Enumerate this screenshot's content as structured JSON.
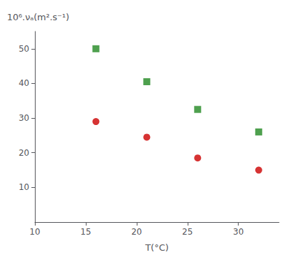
{
  "chart_data": {
    "type": "scatter",
    "xlabel": "T(°C)",
    "ylabel": "10⁶.νₐ(m².s⁻¹)",
    "x": [
      16,
      21,
      26,
      32
    ],
    "series": [
      {
        "color": "#cc0000",
        "marker": "circle",
        "values": [
          29,
          24.5,
          18.5,
          15
        ]
      },
      {
        "color": "#228822",
        "marker": "square",
        "values": [
          50,
          40.5,
          32.5,
          26
        ]
      }
    ],
    "xlim": [
      10,
      34
    ],
    "xticks": [
      10,
      15,
      20,
      25,
      30
    ],
    "ylim": [
      0,
      55
    ],
    "yticks": [
      10,
      20,
      30,
      40,
      50
    ],
    "grid": false
  }
}
